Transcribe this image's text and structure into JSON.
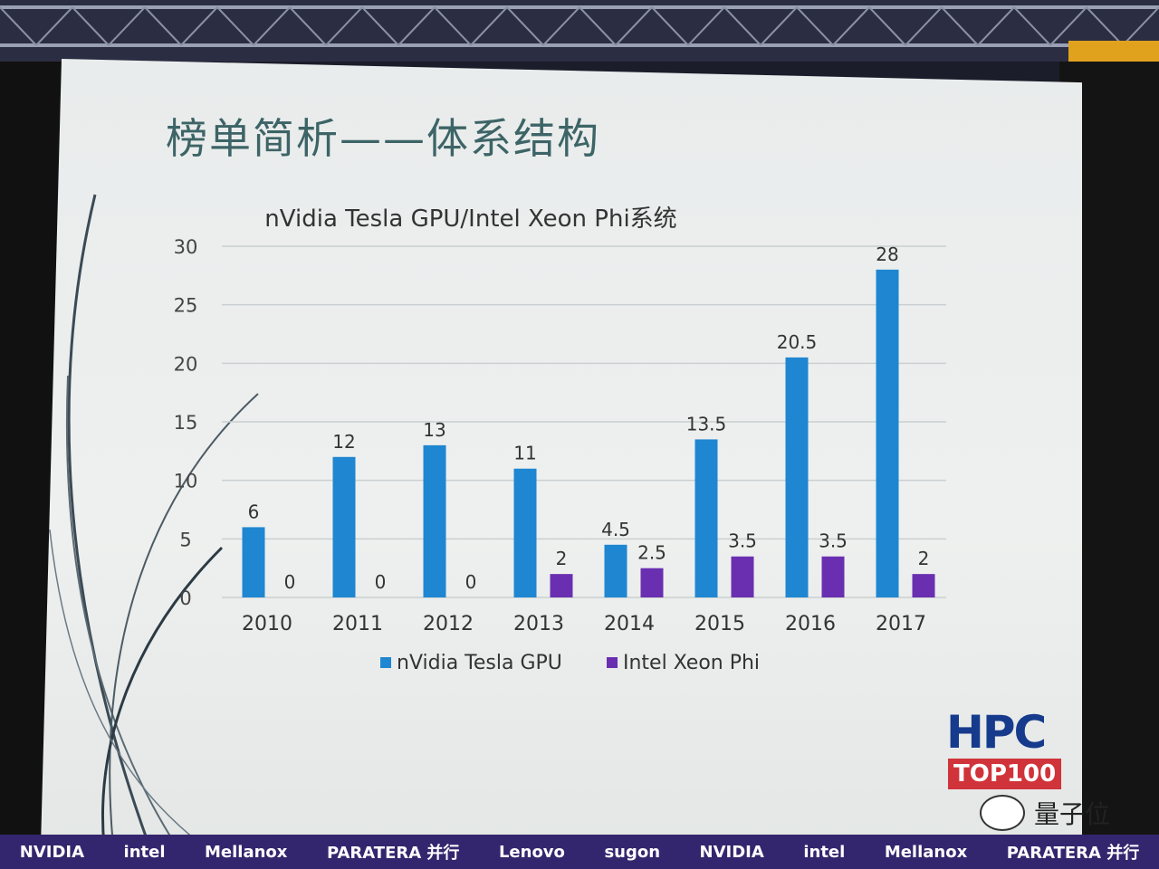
{
  "slide": {
    "title": "榜单简析——体系结构"
  },
  "chart_data": {
    "type": "bar",
    "title": "nVidia Tesla GPU/Intel Xeon Phi系统",
    "categories": [
      "2010",
      "2011",
      "2012",
      "2013",
      "2014",
      "2015",
      "2016",
      "2017"
    ],
    "series": [
      {
        "name": "nVidia Tesla GPU",
        "values": [
          6,
          12,
          13,
          11,
          4.5,
          13.5,
          20.5,
          28
        ],
        "labels": [
          "6",
          "12",
          "13",
          "11",
          "4.5",
          "13.5",
          "20.5",
          "28"
        ],
        "color": "#1f86d1"
      },
      {
        "name": "Intel Xeon Phi",
        "values": [
          0,
          0,
          0,
          2,
          2.5,
          3.5,
          3.5,
          2
        ],
        "labels": [
          "0",
          "0",
          "0",
          "2",
          "2.5",
          "3.5",
          "3.5",
          "2"
        ],
        "color": "#6a2fb0"
      }
    ],
    "yticks": [
      "0",
      "5",
      "10",
      "15",
      "20",
      "25",
      "30"
    ],
    "ylim": [
      0,
      30
    ],
    "grid": true,
    "legend": "bottom"
  },
  "logo": {
    "hpc": "HPC",
    "top100": "TOP100"
  },
  "watermark": {
    "text": "量子位"
  },
  "sponsors": [
    "NVIDIA",
    "intel",
    "Mellanox",
    "PARATERA 并行",
    "Lenovo",
    "sugon",
    "NVIDIA",
    "intel",
    "Mellanox",
    "PARATERA 并行"
  ]
}
